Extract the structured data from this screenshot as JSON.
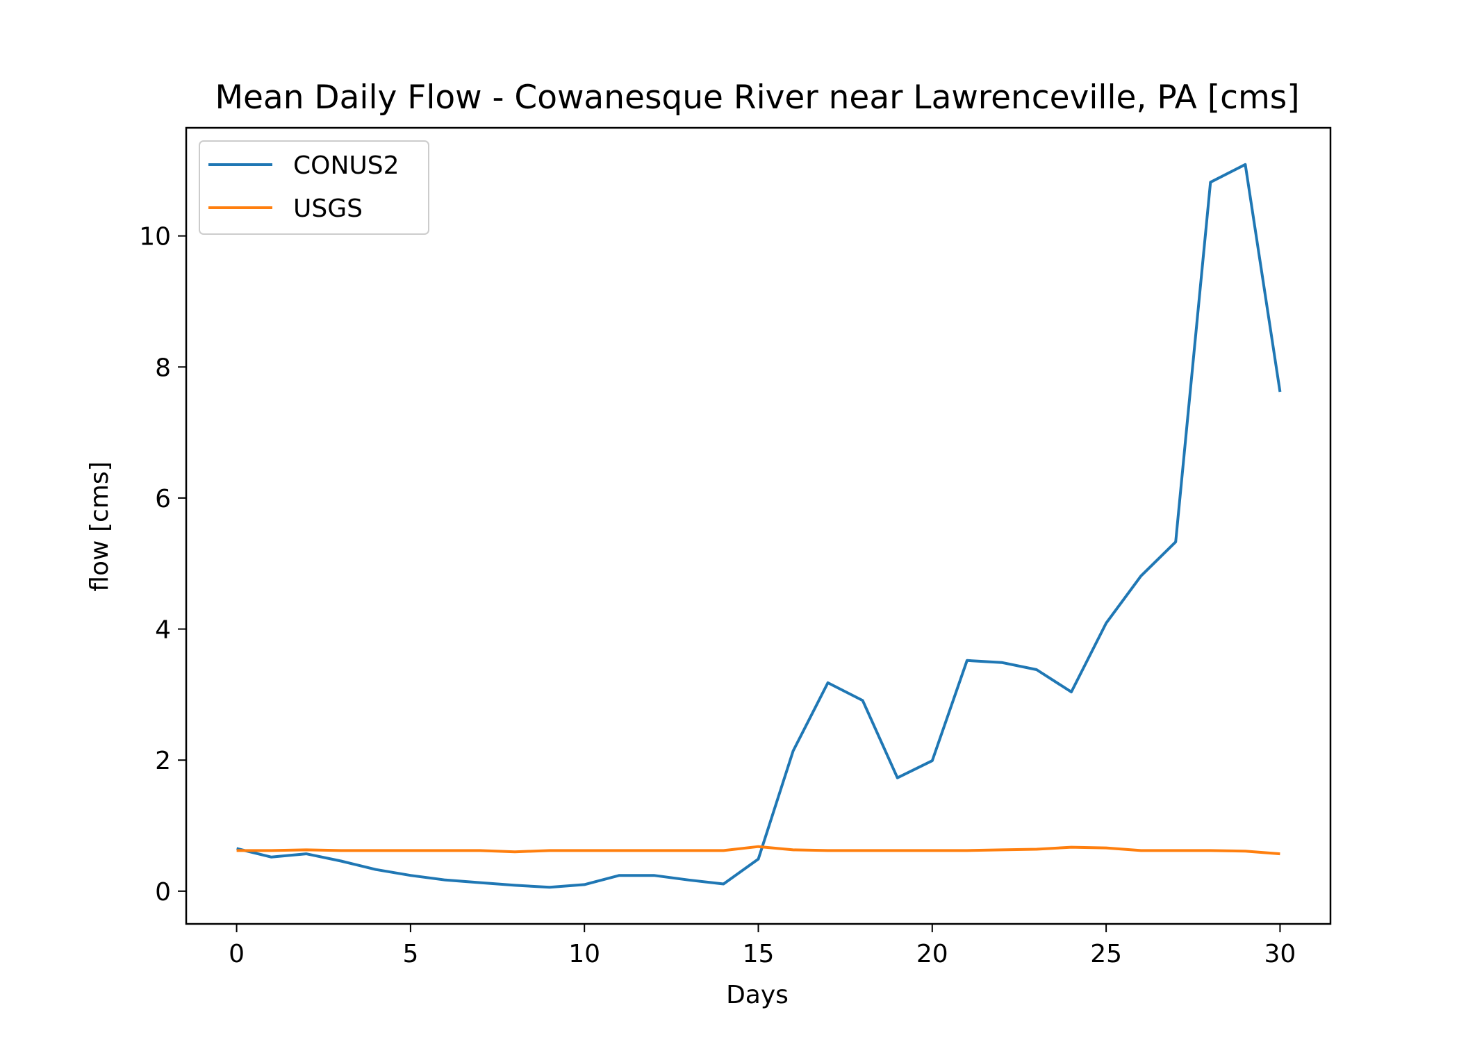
{
  "chart_data": {
    "type": "line",
    "title": "Mean Daily Flow - Cowanesque River near Lawrenceville, PA [cms]",
    "xlabel": "Days",
    "ylabel": "flow [cms]",
    "xlim": [
      -1.45,
      31.45
    ],
    "ylim": [
      -0.5,
      11.65
    ],
    "xticks": [
      0,
      5,
      10,
      15,
      20,
      25,
      30
    ],
    "yticks": [
      0,
      2,
      4,
      6,
      8,
      10
    ],
    "grid": false,
    "legend_position": "top-left",
    "x": [
      0,
      1,
      2,
      3,
      4,
      5,
      6,
      7,
      8,
      9,
      10,
      11,
      12,
      13,
      14,
      15,
      16,
      17,
      18,
      19,
      20,
      21,
      22,
      23,
      24,
      25,
      26,
      27,
      28,
      29,
      30
    ],
    "series": [
      {
        "name": "CONUS2",
        "color": "#1f77b4",
        "values": [
          0.65,
          0.52,
          0.57,
          0.46,
          0.33,
          0.24,
          0.17,
          0.13,
          0.09,
          0.06,
          0.1,
          0.24,
          0.24,
          0.17,
          0.11,
          0.49,
          2.14,
          3.18,
          2.91,
          1.73,
          1.99,
          3.52,
          3.49,
          3.38,
          3.04,
          4.09,
          4.81,
          5.33,
          10.82,
          11.09,
          7.62
        ]
      },
      {
        "name": "USGS",
        "color": "#ff7f0e",
        "values": [
          0.62,
          0.62,
          0.63,
          0.62,
          0.62,
          0.62,
          0.62,
          0.62,
          0.6,
          0.62,
          0.62,
          0.62,
          0.62,
          0.62,
          0.62,
          0.68,
          0.63,
          0.62,
          0.62,
          0.62,
          0.62,
          0.62,
          0.63,
          0.64,
          0.67,
          0.66,
          0.62,
          0.62,
          0.62,
          0.61,
          0.57
        ]
      }
    ]
  }
}
